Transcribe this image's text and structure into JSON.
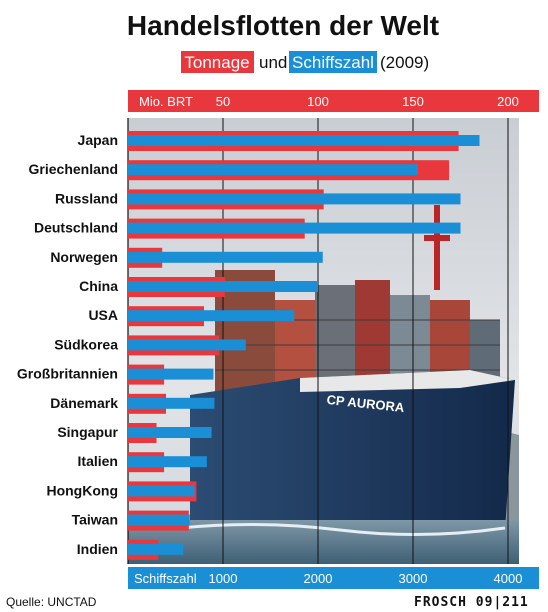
{
  "title": "Handelsflotten der Welt",
  "subtitle": {
    "tonnage_tag": "Tonnage",
    "connector": "und",
    "count_tag": "Schiffszahl",
    "year": "(2009)"
  },
  "source": "Quelle: UNCTAD",
  "credit": "FROSCH 09|211",
  "colors": {
    "tonnage": "#e8383d",
    "count": "#1a8fd6",
    "photo_sky": "#d9dde2",
    "hull": "#1c3a5e"
  },
  "chart_data": {
    "type": "bar",
    "categories": [
      "Japan",
      "Griechenland",
      "Russland",
      "Deutschland",
      "Norwegen",
      "China",
      "USA",
      "Südkorea",
      "Großbritannien",
      "Dänemark",
      "Singapur",
      "Italien",
      "HongKong",
      "Taiwan",
      "Indien"
    ],
    "series": [
      {
        "name": "Tonnage",
        "axis": "top",
        "unit": "Mio. BRT",
        "values": [
          174,
          169,
          103,
          93,
          18,
          51,
          40,
          48,
          19,
          20,
          15,
          19,
          36,
          32,
          16
        ]
      },
      {
        "name": "Schiffszahl",
        "axis": "bottom",
        "values": [
          3700,
          3050,
          3500,
          3500,
          2050,
          2000,
          1750,
          1240,
          900,
          910,
          880,
          830,
          700,
          650,
          580
        ]
      }
    ],
    "top_axis": {
      "label": "Mio. BRT",
      "ticks": [
        50,
        100,
        150,
        200
      ],
      "range": [
        0,
        210
      ]
    },
    "bottom_axis": {
      "label": "Schiffszahl",
      "ticks": [
        1000,
        2000,
        3000,
        4000
      ],
      "range": [
        0,
        4200
      ]
    },
    "ship_name": "CP AURORA"
  }
}
